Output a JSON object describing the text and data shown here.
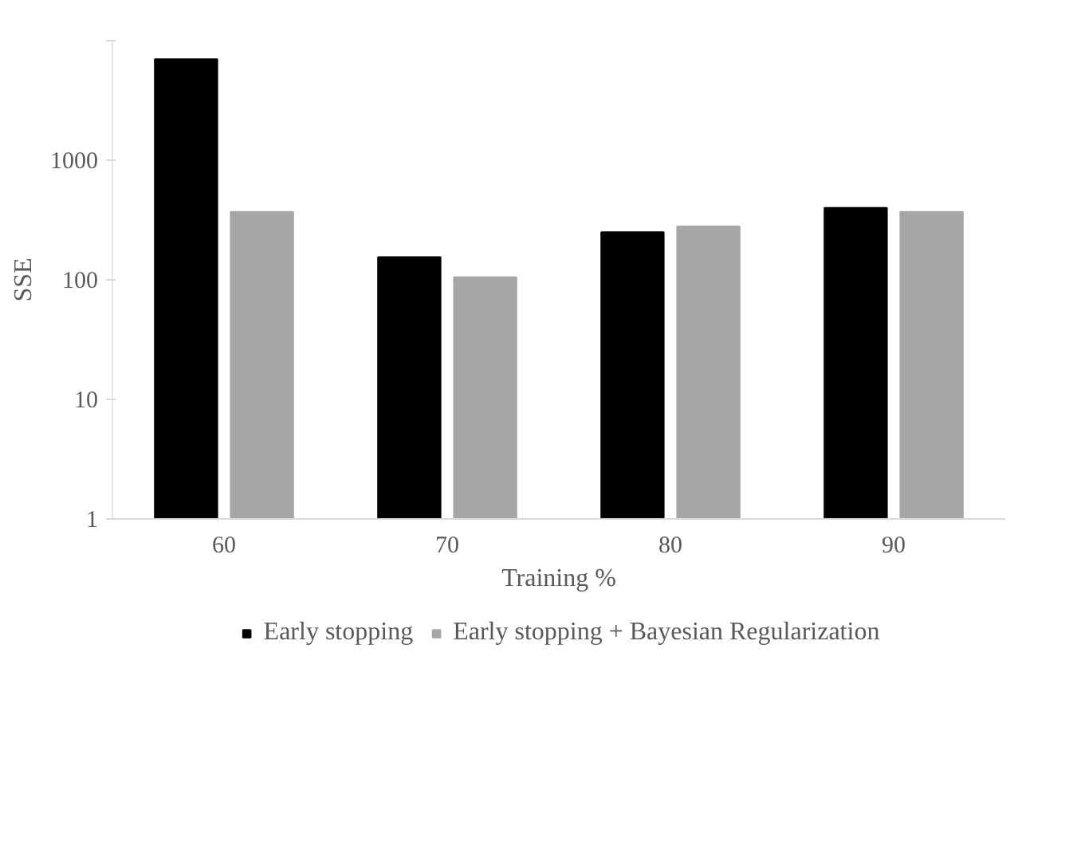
{
  "chart_data": {
    "type": "bar",
    "xlabel": "Training %",
    "ylabel": "SSE",
    "categories": [
      "60",
      "70",
      "80",
      "90"
    ],
    "series": [
      {
        "name": "Early stopping",
        "color": "#000000",
        "values": [
          7000,
          155,
          250,
          400
        ]
      },
      {
        "name": "Early stopping + Bayesian Regularization",
        "color": "#a6a6a6",
        "values": [
          370,
          105,
          280,
          370
        ]
      }
    ],
    "log": true,
    "ylim": [
      1,
      10000
    ],
    "yticks": [
      1,
      10,
      100,
      1000,
      {
        "value": 10000,
        "label": null
      }
    ],
    "grid": false,
    "legend": "bottom"
  }
}
